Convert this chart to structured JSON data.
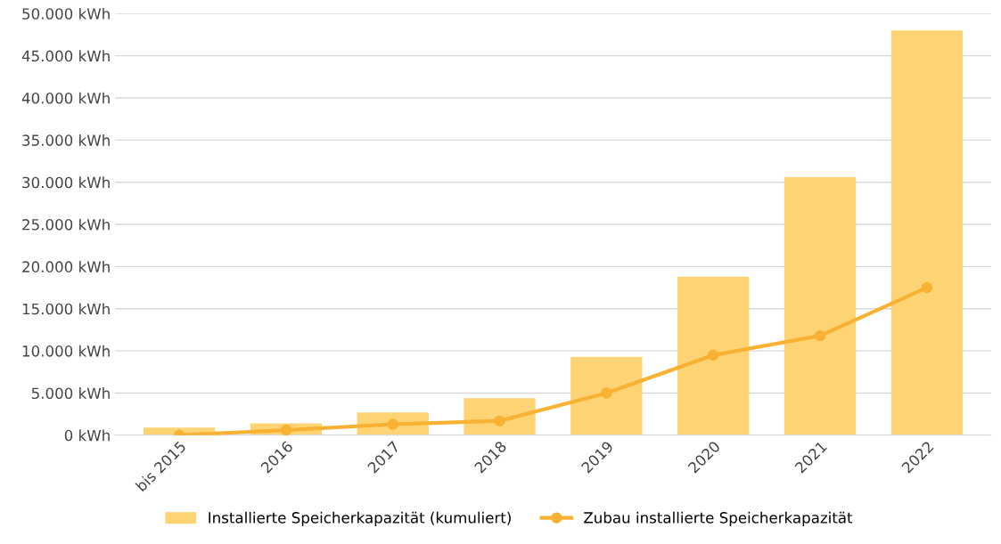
{
  "chart_data": {
    "type": "bar",
    "categories": [
      "bis 2015",
      "2016",
      "2017",
      "2018",
      "2019",
      "2020",
      "2021",
      "2022"
    ],
    "series": [
      {
        "name": "Installierte Speicherkapazität (kumuliert)",
        "color": "#fed373",
        "values": [
          900,
          1400,
          2700,
          4400,
          9300,
          18800,
          30600,
          48000
        ]
      },
      {
        "name": "Zubau installierte Speicherkapazität",
        "type": "line",
        "color": "#f8b133",
        "marker": "circle",
        "values": [
          0,
          600,
          1300,
          1700,
          5000,
          9500,
          11800,
          17500
        ]
      }
    ],
    "ylim": [
      0,
      50000
    ],
    "yticks": [
      {
        "value": 0,
        "label": "0 kWh"
      },
      {
        "value": 5000,
        "label": "5.000 kWh"
      },
      {
        "value": 10000,
        "label": "10.000 kWh"
      },
      {
        "value": 15000,
        "label": "15.000 kWh"
      },
      {
        "value": 20000,
        "label": "20.000 kWh"
      },
      {
        "value": 25000,
        "label": "25.000 kWh"
      },
      {
        "value": 30000,
        "label": "30.000 kWh"
      },
      {
        "value": 35000,
        "label": "35.000 kWh"
      },
      {
        "value": 40000,
        "label": "40.000 kWh"
      },
      {
        "value": 45000,
        "label": "45.000 kWh"
      },
      {
        "value": 50000,
        "label": "50.000 kWh"
      }
    ],
    "grid": "y",
    "legend": "bottom"
  }
}
